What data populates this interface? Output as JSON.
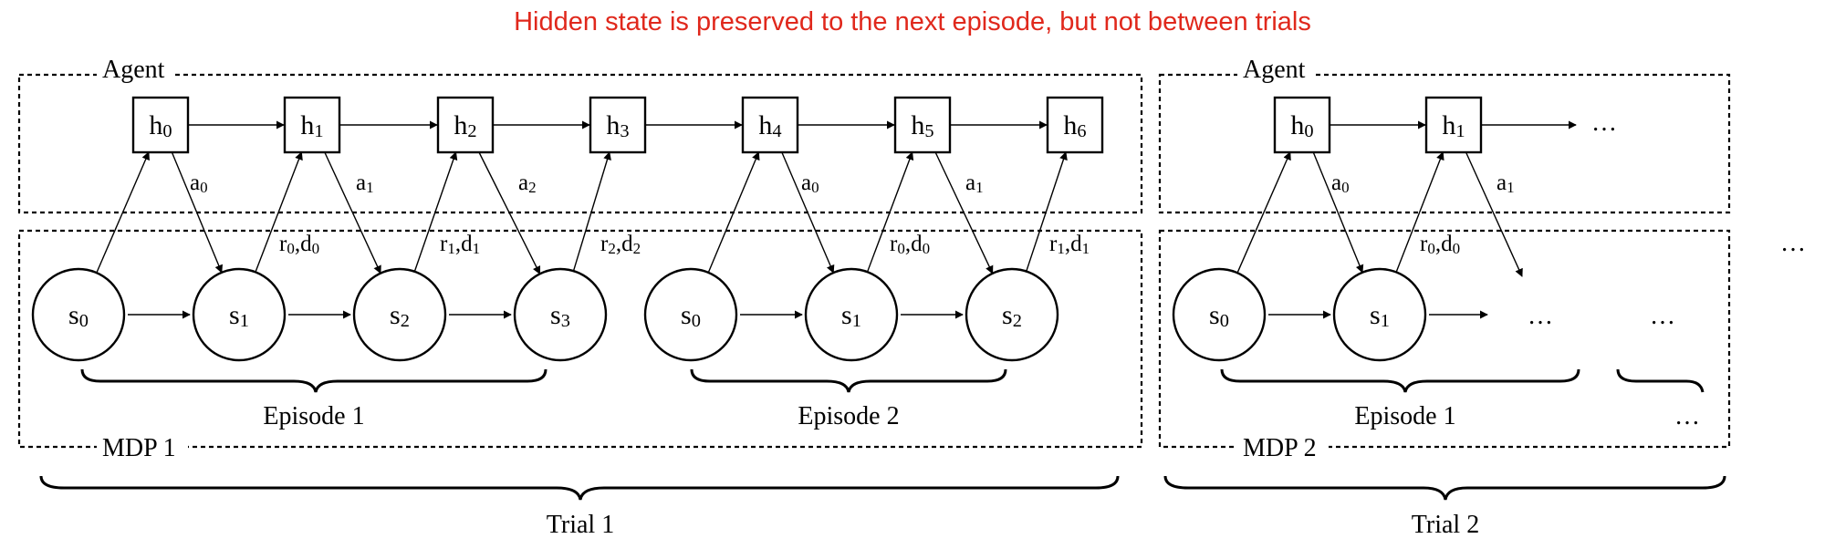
{
  "title": "Hidden state is preserved to the next episode, but not between trials",
  "box_labels": {
    "agent_1": "Agent",
    "mdp_1": "MDP 1",
    "agent_2": "Agent",
    "mdp_2": "MDP 2"
  },
  "hidden_states_trial1": [
    {
      "base": "h",
      "sub": "0"
    },
    {
      "base": "h",
      "sub": "1"
    },
    {
      "base": "h",
      "sub": "2"
    },
    {
      "base": "h",
      "sub": "3"
    },
    {
      "base": "h",
      "sub": "4"
    },
    {
      "base": "h",
      "sub": "5"
    },
    {
      "base": "h",
      "sub": "6"
    }
  ],
  "hidden_states_trial2": [
    {
      "base": "h",
      "sub": "0"
    },
    {
      "base": "h",
      "sub": "1"
    }
  ],
  "env_states_trial1": [
    {
      "base": "s",
      "sub": "0"
    },
    {
      "base": "s",
      "sub": "1"
    },
    {
      "base": "s",
      "sub": "2"
    },
    {
      "base": "s",
      "sub": "3"
    },
    {
      "base": "s",
      "sub": "0"
    },
    {
      "base": "s",
      "sub": "1"
    },
    {
      "base": "s",
      "sub": "2"
    }
  ],
  "env_states_trial2": [
    {
      "base": "s",
      "sub": "0"
    },
    {
      "base": "s",
      "sub": "1"
    }
  ],
  "action_labels_trial1": [
    {
      "base": "a",
      "sub": "0"
    },
    {
      "base": "a",
      "sub": "1"
    },
    {
      "base": "a",
      "sub": "2"
    },
    {
      "base": "a",
      "sub": "0"
    },
    {
      "base": "a",
      "sub": "1"
    }
  ],
  "action_labels_trial2": [
    {
      "base": "a",
      "sub": "0"
    },
    {
      "base": "a",
      "sub": "1"
    }
  ],
  "reward_labels_trial1": [
    {
      "r": "0",
      "d": "0"
    },
    {
      "r": "1",
      "d": "1"
    },
    {
      "r": "2",
      "d": "2"
    },
    {
      "r": "0",
      "d": "0"
    },
    {
      "r": "1",
      "d": "1"
    }
  ],
  "reward_labels_trial2": [
    {
      "r": "0",
      "d": "0"
    }
  ],
  "episodes": {
    "t1_ep1": "Episode 1",
    "t1_ep2": "Episode 2",
    "t2_ep1": "Episode 1"
  },
  "trials": {
    "trial_1": "Trial 1",
    "trial_2": "Trial 2"
  },
  "ellipsis": "…"
}
